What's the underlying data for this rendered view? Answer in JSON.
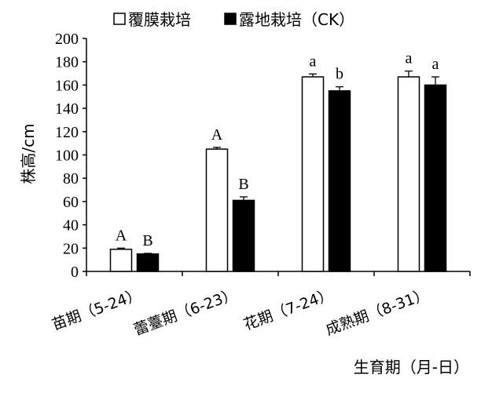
{
  "chart_data": {
    "type": "bar",
    "ylabel": "株高/cm",
    "xlabel": "生育期（月-日）",
    "ylim": [
      0,
      200
    ],
    "yticks": [
      0,
      20,
      40,
      60,
      80,
      100,
      120,
      140,
      160,
      180,
      200
    ],
    "grid": false,
    "legend_position": "top",
    "categories": [
      "苗期（5-24）",
      "蕾薹期（6-23）",
      "花期（7-24）",
      "成熟期（8-31）"
    ],
    "series": [
      {
        "name": "覆膜栽培",
        "color": "#ffffff",
        "values": [
          19,
          105,
          167,
          167
        ],
        "errors": [
          1,
          1.5,
          2.5,
          5
        ],
        "significance": [
          "A",
          "A",
          "a",
          "a"
        ]
      },
      {
        "name": "露地栽培（CK）",
        "color": "#000000",
        "values": [
          15,
          61,
          155,
          160
        ],
        "errors": [
          0.5,
          3,
          3.5,
          7
        ],
        "significance": [
          "B",
          "B",
          "b",
          "a"
        ]
      }
    ]
  }
}
